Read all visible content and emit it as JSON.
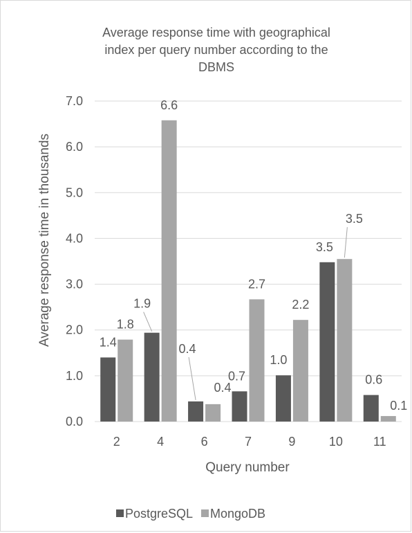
{
  "chart_data": {
    "type": "bar",
    "title": "Average response time with geographical index per query number according to the DBMS",
    "title_lines": [
      "Average response time with geographical",
      "index per query number according to the",
      "DBMS"
    ],
    "xlabel": "Query number",
    "ylabel": "Average response time in thousands",
    "categories": [
      "2",
      "4",
      "6",
      "7",
      "9",
      "10",
      "11"
    ],
    "series": [
      {
        "name": "PostgreSQL",
        "color": "#595959",
        "values": [
          1.4,
          1.94,
          0.44,
          0.66,
          1.01,
          3.48,
          0.58
        ],
        "labels": [
          "1.4",
          "1.9",
          "0.4",
          "0.7",
          "1.0",
          "3.5",
          "0.6"
        ]
      },
      {
        "name": "MongoDB",
        "color": "#a6a6a6",
        "values": [
          1.79,
          6.58,
          0.38,
          2.67,
          2.22,
          3.55,
          0.12
        ],
        "labels": [
          "1.8",
          "6.6",
          "0.4",
          "2.7",
          "2.2",
          "3.5",
          "0.1"
        ]
      }
    ],
    "ylim": [
      0,
      7
    ],
    "yticks": [
      "0.0",
      "1.0",
      "2.0",
      "3.0",
      "4.0",
      "5.0",
      "6.0",
      "7.0"
    ],
    "grid": true,
    "legend_position": "bottom"
  }
}
